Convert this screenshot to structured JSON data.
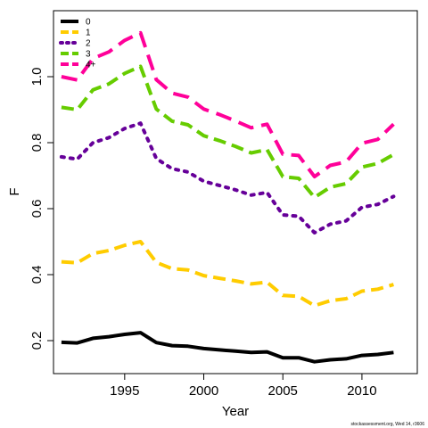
{
  "chart_data": {
    "type": "line",
    "xlabel": "Year",
    "ylabel": "F",
    "xlim": [
      1990.5,
      2013.5
    ],
    "ylim": [
      0.1,
      1.2
    ],
    "x_ticks": [
      1995,
      2000,
      2005,
      2010
    ],
    "y_ticks": [
      0.2,
      0.4,
      0.6,
      0.8,
      1.0
    ],
    "x_tick_labels": [
      "1995",
      "2000",
      "2005",
      "2010"
    ],
    "y_tick_labels": [
      "0.2",
      "0.4",
      "0.6",
      "0.8",
      "1.0"
    ],
    "legend_position": "top-left",
    "x": [
      1991,
      1992,
      1993,
      1994,
      1995,
      1996,
      1997,
      1998,
      1999,
      2000,
      2001,
      2002,
      2003,
      2004,
      2005,
      2006,
      2007,
      2008,
      2009,
      2010,
      2011,
      2012
    ],
    "series": [
      {
        "name": "0",
        "color": "#000000",
        "dash": "solid",
        "values": [
          0.195,
          0.193,
          0.207,
          0.212,
          0.219,
          0.224,
          0.194,
          0.185,
          0.183,
          0.176,
          0.172,
          0.168,
          0.164,
          0.166,
          0.148,
          0.148,
          0.136,
          0.142,
          0.145,
          0.155,
          0.158,
          0.164
        ]
      },
      {
        "name": "1",
        "color": "#FFCC00",
        "dash": "dashed",
        "values": [
          0.439,
          0.436,
          0.464,
          0.473,
          0.489,
          0.5,
          0.437,
          0.418,
          0.414,
          0.397,
          0.389,
          0.381,
          0.372,
          0.377,
          0.337,
          0.334,
          0.306,
          0.321,
          0.327,
          0.35,
          0.356,
          0.37
        ]
      },
      {
        "name": "2",
        "color": "#660099",
        "dash": "dotted",
        "values": [
          0.757,
          0.75,
          0.8,
          0.815,
          0.843,
          0.859,
          0.752,
          0.721,
          0.711,
          0.683,
          0.67,
          0.657,
          0.641,
          0.649,
          0.581,
          0.577,
          0.527,
          0.553,
          0.563,
          0.604,
          0.613,
          0.637
        ]
      },
      {
        "name": "3",
        "color": "#66CC00",
        "dash": "dashed",
        "values": [
          0.907,
          0.9,
          0.96,
          0.978,
          1.01,
          1.031,
          0.902,
          0.865,
          0.854,
          0.821,
          0.806,
          0.789,
          0.769,
          0.779,
          0.697,
          0.692,
          0.634,
          0.665,
          0.676,
          0.726,
          0.737,
          0.764
        ]
      },
      {
        "name": "4+",
        "color": "#FF0099",
        "dash": "longdash",
        "values": [
          1.0,
          0.99,
          1.055,
          1.075,
          1.11,
          1.133,
          0.991,
          0.95,
          0.938,
          0.902,
          0.885,
          0.866,
          0.845,
          0.856,
          0.765,
          0.761,
          0.697,
          0.731,
          0.742,
          0.798,
          0.81,
          0.856
        ]
      }
    ]
  },
  "footer": "stockassessment.org, Wed 14, r3606"
}
